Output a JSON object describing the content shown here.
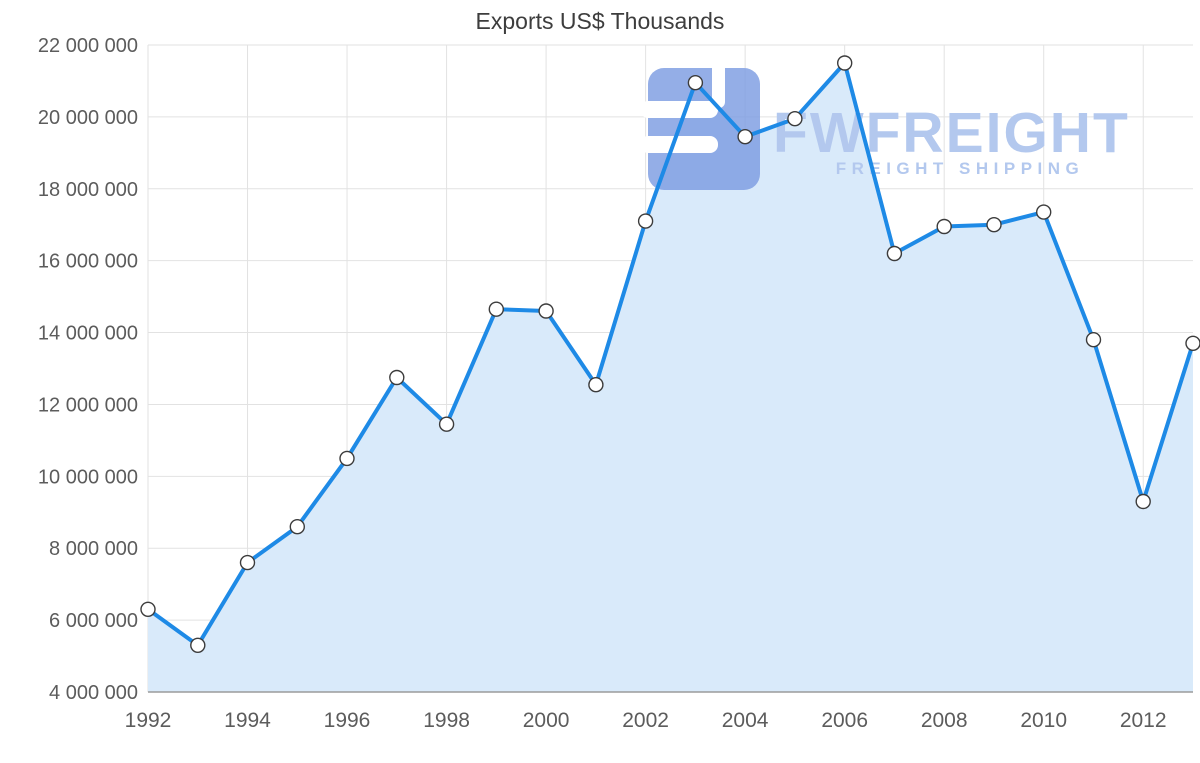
{
  "chart_data": {
    "type": "area",
    "title": "Exports US$ Thousands",
    "xlabel": "",
    "ylabel": "",
    "x": [
      1992,
      1993,
      1994,
      1995,
      1996,
      1997,
      1998,
      1999,
      2000,
      2001,
      2002,
      2003,
      2004,
      2005,
      2006,
      2007,
      2008,
      2009,
      2010,
      2011,
      2012,
      2013
    ],
    "values": [
      6300000,
      5300000,
      7600000,
      8600000,
      10500000,
      12750000,
      11450000,
      14650000,
      14600000,
      12550000,
      17100000,
      20950000,
      19450000,
      19950000,
      21500000,
      16200000,
      16950000,
      17000000,
      17350000,
      13800000,
      9300000,
      13700000
    ],
    "xlim": [
      1992,
      2013
    ],
    "ylim": [
      4000000,
      22000000
    ],
    "grid": true,
    "legend": "none",
    "xticks": {
      "years": [
        1992,
        1994,
        1996,
        1998,
        2000,
        2002,
        2004,
        2006,
        2008,
        2010,
        2012
      ],
      "labels": [
        "1992",
        "1994",
        "1996",
        "1998",
        "2000",
        "2002",
        "2004",
        "2006",
        "2008",
        "2010",
        "2012"
      ]
    },
    "yticks": {
      "values": [
        4000000,
        6000000,
        8000000,
        10000000,
        12000000,
        14000000,
        16000000,
        18000000,
        20000000,
        22000000
      ],
      "labels": [
        "4 000 000",
        "6 000 000",
        "8 000 000",
        "10 000 000",
        "12 000 000",
        "14 000 000",
        "16 000 000",
        "18 000 000",
        "20 000 000",
        "22 000 000"
      ]
    },
    "colors": {
      "line": "#1e8ae6",
      "area": "#d9eafa",
      "marker_fill": "#ffffff",
      "marker_stroke": "#3c3c3c",
      "grid": "#e2e2e2",
      "axis": "#9b9b9b",
      "tick_text": "#5c5c5c",
      "title_text": "#3d3d3d"
    }
  },
  "watermark": {
    "brand": "FWFREIGHT",
    "tagline": "FREIGHT SHIPPING",
    "text_color": "#b3c8ee",
    "icon_color": "#7d9ce2"
  }
}
